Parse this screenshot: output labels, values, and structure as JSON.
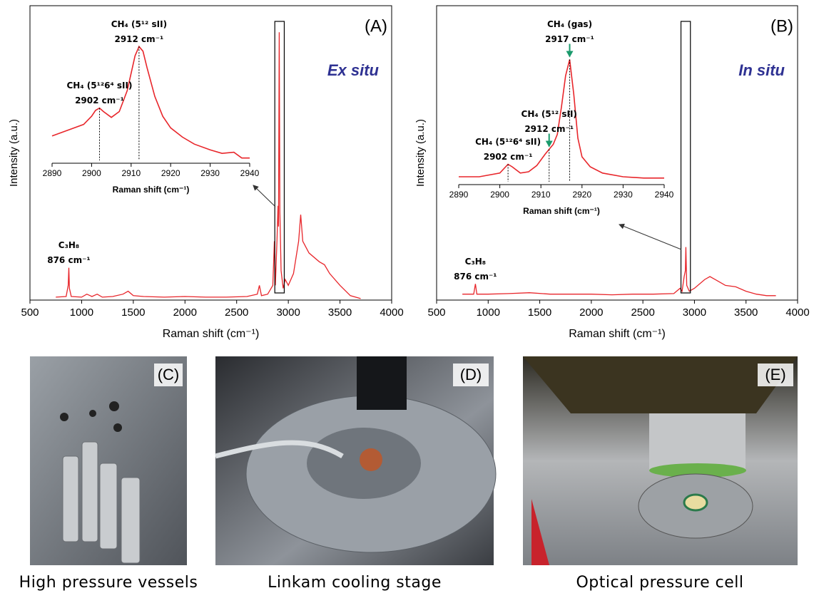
{
  "chart_data": [
    {
      "type": "line",
      "panel_label": "(A)",
      "note": "Ex situ",
      "ylabel": "Intensity (a.u.)",
      "xlabel": "Raman shift (cm⁻¹)",
      "color": "#e8262b",
      "xlim": [
        500,
        4000
      ],
      "xticks": [
        500,
        1000,
        1500,
        2000,
        2500,
        3000,
        3500,
        4000
      ],
      "ylim": [
        0,
        1
      ],
      "x": [
        750,
        850,
        870,
        876,
        882,
        900,
        1000,
        1050,
        1100,
        1150,
        1200,
        1300,
        1400,
        1450,
        1500,
        1600,
        1800,
        2000,
        2200,
        2400,
        2600,
        2700,
        2720,
        2740,
        2800,
        2850,
        2865,
        2875,
        2890,
        2900,
        2905,
        2912,
        2918,
        2930,
        2950,
        2970,
        3000,
        3050,
        3100,
        3120,
        3140,
        3200,
        3300,
        3350,
        3400,
        3500,
        3600,
        3700
      ],
      "values": [
        0.01,
        0.012,
        0.05,
        0.11,
        0.04,
        0.012,
        0.01,
        0.02,
        0.012,
        0.02,
        0.01,
        0.012,
        0.02,
        0.03,
        0.015,
        0.012,
        0.01,
        0.012,
        0.01,
        0.01,
        0.012,
        0.02,
        0.05,
        0.015,
        0.02,
        0.05,
        0.2,
        0.05,
        0.2,
        0.32,
        0.25,
        0.91,
        0.3,
        0.1,
        0.04,
        0.07,
        0.05,
        0.09,
        0.2,
        0.29,
        0.2,
        0.16,
        0.13,
        0.12,
        0.09,
        0.05,
        0.015,
        0.005
      ],
      "annotations": [
        {
          "x": 876,
          "lines": [
            "C₃H₈",
            "876 cm⁻¹"
          ]
        }
      ],
      "inset": {
        "type": "line",
        "xlabel": "Raman shift (cm⁻¹)",
        "color": "#e8262b",
        "droplines": true,
        "xlim": [
          2890,
          2940
        ],
        "xticks": [
          2890,
          2900,
          2910,
          2920,
          2930,
          2940
        ],
        "ylim": [
          0,
          1
        ],
        "x": [
          2890,
          2894,
          2898,
          2900,
          2901,
          2902,
          2903,
          2905,
          2907,
          2909,
          2910,
          2911,
          2912,
          2913,
          2914,
          2916,
          2918,
          2920,
          2923,
          2926,
          2930,
          2933,
          2936,
          2938,
          2940
        ],
        "values": [
          0.21,
          0.26,
          0.31,
          0.38,
          0.43,
          0.45,
          0.42,
          0.37,
          0.42,
          0.6,
          0.75,
          0.9,
          0.98,
          0.94,
          0.8,
          0.55,
          0.38,
          0.28,
          0.2,
          0.14,
          0.09,
          0.06,
          0.07,
          0.02,
          0.02
        ],
        "annotations": [
          {
            "x": 2902,
            "lines": [
              "CH₄ (5¹²6⁴ sII)",
              "2902 cm⁻¹"
            ]
          },
          {
            "x": 2912,
            "lines": [
              "CH₄ (5¹² sII)",
              "2912 cm⁻¹"
            ]
          }
        ]
      }
    },
    {
      "type": "line",
      "panel_label": "(B)",
      "note": "In situ",
      "ylabel": "Intensity (a.u.)",
      "xlabel": "Raman shift (cm⁻¹)",
      "color": "#e8262b",
      "xlim": [
        500,
        4000
      ],
      "xticks": [
        500,
        1000,
        1500,
        2000,
        2500,
        3000,
        3500,
        4000
      ],
      "ylim": [
        0,
        1
      ],
      "x": [
        750,
        860,
        876,
        890,
        1000,
        1200,
        1400,
        1600,
        1800,
        2000,
        2200,
        2400,
        2600,
        2800,
        2860,
        2880,
        2900,
        2912,
        2917,
        2925,
        2950,
        3000,
        3100,
        3150,
        3200,
        3300,
        3400,
        3500,
        3600,
        3700,
        3790
      ],
      "values": [
        0.02,
        0.02,
        0.055,
        0.02,
        0.02,
        0.022,
        0.025,
        0.02,
        0.02,
        0.02,
        0.018,
        0.02,
        0.02,
        0.022,
        0.04,
        0.03,
        0.08,
        0.1,
        0.18,
        0.05,
        0.03,
        0.04,
        0.07,
        0.08,
        0.07,
        0.05,
        0.045,
        0.03,
        0.02,
        0.015,
        0.015
      ],
      "annotations": [
        {
          "x": 876,
          "lines": [
            "C₃H₈",
            "876 cm⁻¹"
          ]
        }
      ],
      "inset": {
        "type": "line",
        "xlabel": "Raman shift (cm⁻¹)",
        "color": "#e8262b",
        "droplines": true,
        "xlim": [
          2890,
          2940
        ],
        "xticks": [
          2890,
          2900,
          2910,
          2920,
          2930,
          2940
        ],
        "ylim": [
          0,
          1
        ],
        "x": [
          2890,
          2895,
          2900,
          2902,
          2903,
          2905,
          2907,
          2909,
          2911,
          2912,
          2913,
          2914,
          2915,
          2916,
          2917,
          2918,
          2919,
          2920,
          2922,
          2925,
          2930,
          2935,
          2940
        ],
        "values": [
          0.04,
          0.04,
          0.07,
          0.14,
          0.12,
          0.07,
          0.08,
          0.13,
          0.22,
          0.26,
          0.3,
          0.38,
          0.6,
          0.85,
          0.98,
          0.7,
          0.35,
          0.2,
          0.12,
          0.07,
          0.04,
          0.03,
          0.03
        ],
        "annotations": [
          {
            "x": 2902,
            "lines": [
              "CH₄ (5¹²6⁴ sII)",
              "2902 cm⁻¹"
            ]
          },
          {
            "x": 2912,
            "arrow": true,
            "lines": [
              "CH₄ (5¹² sII)",
              "2912 cm⁻¹"
            ]
          },
          {
            "x": 2917,
            "arrow": true,
            "lines": [
              "CH₄ (gas)",
              "2917 cm⁻¹"
            ]
          }
        ]
      }
    }
  ],
  "photos": [
    {
      "label": "(C)",
      "caption": "High pressure vessels"
    },
    {
      "label": "(D)",
      "caption": "Linkam cooling stage"
    },
    {
      "label": "(E)",
      "caption": "Optical pressure cell"
    }
  ]
}
